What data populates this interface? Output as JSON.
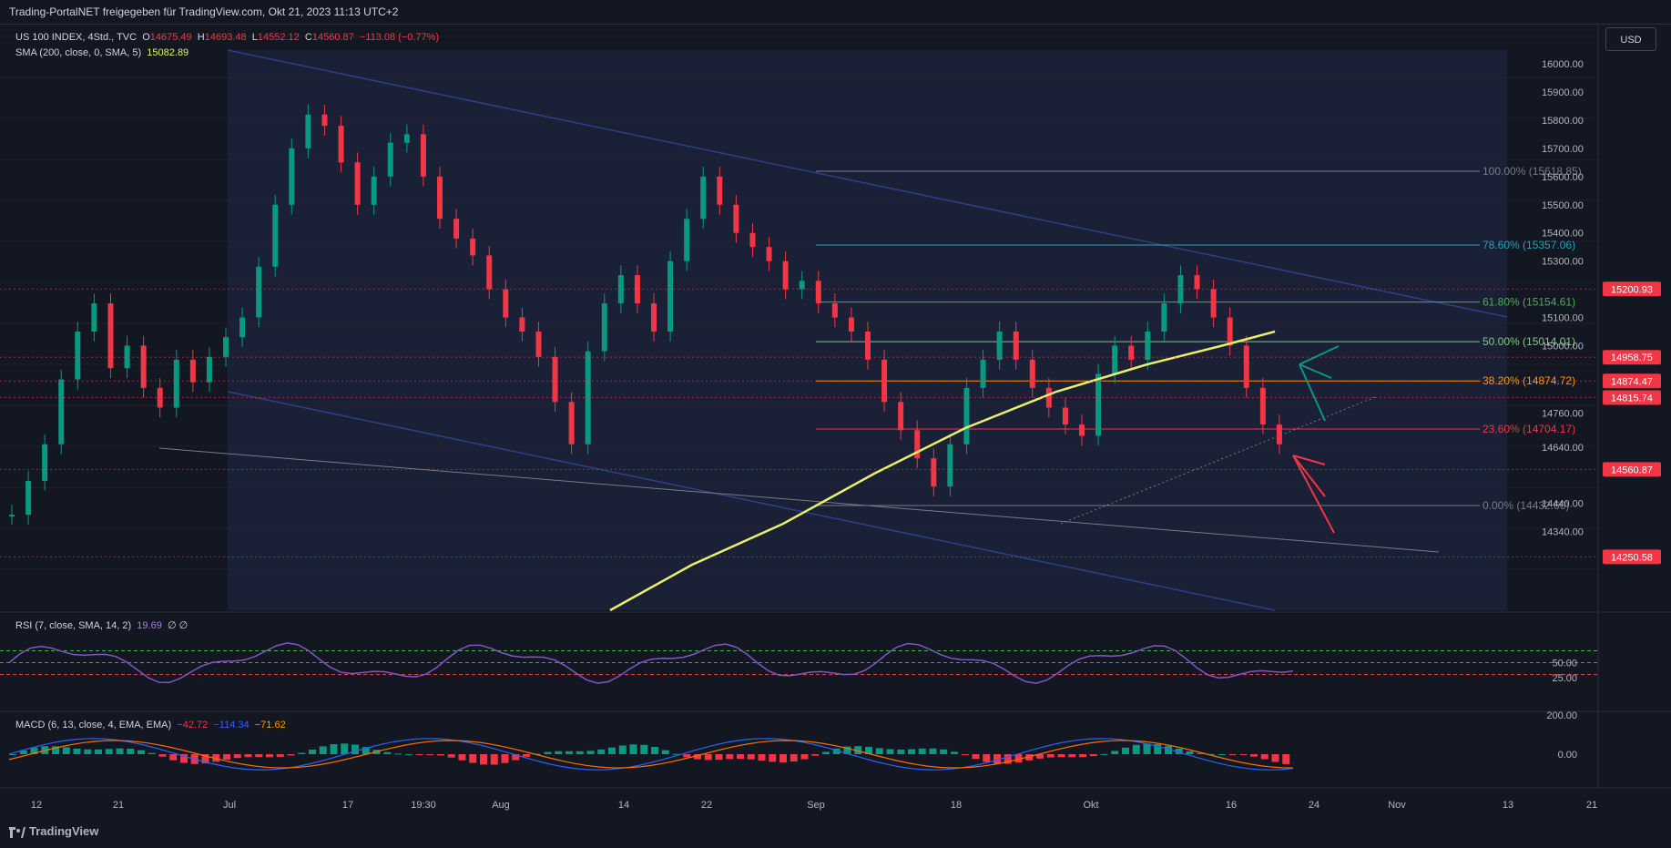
{
  "header": {
    "title": "Trading-PortalNET freigegeben für TradingView.com, Okt 21, 2023 11:13 UTC+2"
  },
  "legend": {
    "symbol": "US 100 INDEX, 4Std., TVC",
    "o_label": "O",
    "o": "14675.49",
    "h_label": "H",
    "h": "14693.48",
    "l_label": "L",
    "l": "14552.12",
    "c_label": "C",
    "c": "14560.87",
    "change": "−113.08 (−0.77%)",
    "sma_label": "SMA (200, close, 0, SMA, 5)",
    "sma_value": "15082.89",
    "rsi_label": "RSI (7, close, SMA, 14, 2)",
    "rsi_value": "19.69",
    "rsi_extra": "∅ ∅",
    "macd_label": "MACD (6, 13, close, 4, EMA, EMA)",
    "macd_v1": "−42.72",
    "macd_v2": "−114.34",
    "macd_v3": "−71.62"
  },
  "currency_button": "USD",
  "footer_brand": "TradingView",
  "colors": {
    "background": "#131722",
    "up": "#089981",
    "down": "#f23645",
    "sma": "#e8f06b",
    "channel": "#2a3a7a",
    "rsi": "#7e57c2",
    "macd": "#2962ff",
    "signal": "#ff6d00"
  },
  "chart_data": {
    "type": "candlestick",
    "symbol": "US 100 INDEX",
    "timeframe": "4Std.",
    "ylim": [
      14250,
      16050
    ],
    "y_ticks": [
      "16000.00",
      "15900.00",
      "15800.00",
      "15700.00",
      "15600.00",
      "15500.00",
      "15400.00",
      "15300.00",
      "15100.00",
      "15000.00",
      "14760.00",
      "14640.00",
      "14440.00",
      "14340.00"
    ],
    "x_ticks": [
      "12",
      "21",
      "Jul",
      "17",
      "19:30",
      "Aug",
      "14",
      "22",
      "Sep",
      "18",
      "Okt",
      "16",
      "24",
      "Nov",
      "13",
      "21"
    ],
    "price_labels": [
      {
        "value": "15200.93",
        "y": 15200.93
      },
      {
        "value": "14958.75",
        "y": 14958.75
      },
      {
        "value": "14874.47",
        "y": 14874.47
      },
      {
        "value": "14815.74",
        "y": 14815.74
      },
      {
        "value": "14560.87",
        "y": 14560.87
      },
      {
        "value": "14250.58",
        "y": 14250.58
      }
    ],
    "fibonacci": [
      {
        "label": "100.00% (15618.85)",
        "value": 15618.85,
        "color": "#787b86"
      },
      {
        "label": "78.60% (15357.06)",
        "value": 15357.06,
        "color": "#22a4b5"
      },
      {
        "label": "61.80% (15154.61)",
        "value": 15154.61,
        "color": "#4caf50"
      },
      {
        "label": "50.00% (15014.01)",
        "value": 15014.01,
        "color": "#81c784"
      },
      {
        "label": "38.20% (14874.72)",
        "value": 14874.72,
        "color": "#ff9800"
      },
      {
        "label": "23.60% (14704.17)",
        "value": 14704.17,
        "color": "#f23645"
      },
      {
        "label": "0.00% (14432.60)",
        "value": 14432.6,
        "color": "#787b86"
      }
    ],
    "rsi_ticks": [
      "50.00",
      "25.00"
    ],
    "macd_ticks": [
      "200.00",
      "0.00"
    ]
  }
}
